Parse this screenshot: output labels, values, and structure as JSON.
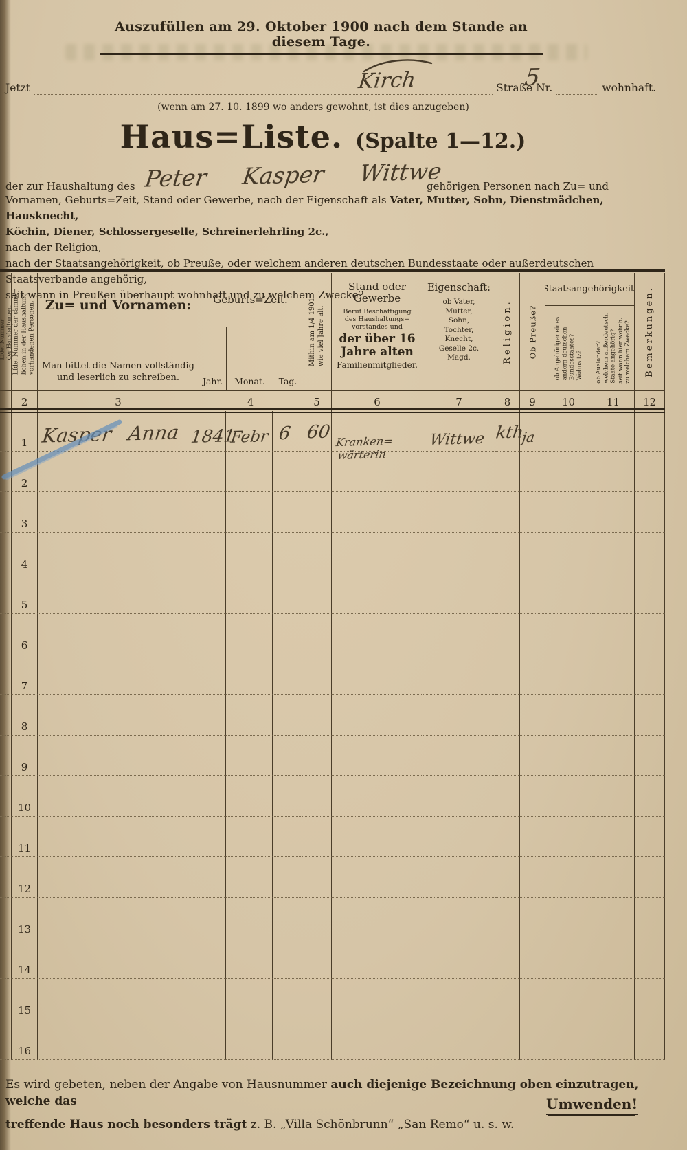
{
  "document": {
    "top_instruction": "Auszufüllen am 29. Oktober 1900 nach dem Stande an diesem Tage.",
    "address_line": {
      "jetzt_label": "Jetzt",
      "street_handwritten": "Kirch",
      "street_nr_label": "Straße Nr.",
      "street_nr_handwritten": "5",
      "wohnhaft_label": "wohnhaft."
    },
    "note_previous_residence": "(wenn am 27. 10. 1899 wo anders gewohnt, ist dies anzugeben)",
    "title": "Haus=Liste.",
    "title_suffix": "(Spalte 1—12.)",
    "intro": {
      "line1_pre": "der zur Haushaltung des",
      "line1_handwritten_name": "Peter Kasper Wittwe",
      "line1_post": "gehörigen Personen nach Zu= und",
      "line2_regular": "Vornamen, Geburts=Zeit, Stand oder Gewerbe, nach der Eigenschaft als",
      "line2_bold": "Vater, Mutter, Sohn, Dienstmädchen, Hausknecht,",
      "line3_bold": "Köchin, Diener, Schlossergeselle, Schreinerlehrling 2c.,",
      "line4": "nach der Religion,",
      "line5": "nach der Staatsangehörigkeit, ob Preuße, oder welchem anderen deutschen Bundesstaate oder außerdeutschen Staatsverbande angehörig,",
      "line6": "seit wann in Preußen überhaupt wohnhaft und zu welchem Zwecke?"
    }
  },
  "table": {
    "col_numbers": [
      "2",
      "3",
      "4",
      "5",
      "6",
      "7",
      "8",
      "9",
      "10",
      "11",
      "12"
    ],
    "headers": {
      "col1_rot": "Lfde. Nummer\nder Haushaltungen.",
      "col2_rot": "Lfde. Nummer der sämmt=\nlichen in der Haushaltung\nvorhandenen Personen.",
      "col3_title": "Zu= und Vornamen:",
      "col3_note": "Man bittet die Namen vollständig\nund leserlich zu schreiben.",
      "col4_title": "Geburts=Zeit.",
      "col4_sub_jahr": "Jahr.",
      "col4_sub_monat": "Monat.",
      "col4_sub_tag": "Tag.",
      "col5_rot": "Mithin am 1/4 1901\nwie viel Jahre alt.",
      "col6_title": "Stand oder\nGewerbe",
      "col6_small": "Beruf Beschäftigung\ndes Haushaltungs=\nvorstandes und",
      "col6_bold": "der über 16\nJahre alten",
      "col6_tail": "Familienmitglieder.",
      "col7_title": "Eigenschaft:",
      "col7_list": "ob Vater,\nMutter,\nSohn,\nTochter,\nKnecht,\nGeselle 2c.\nMagd.",
      "col8_rot": "Religion.",
      "col9_rot": "Ob Preuße?",
      "col10_group": "Staatsangehörigkeit.",
      "col10_rot": "ob Angehöriger eines\nandern deutschen\nBundesstaates?\nWohnsitz?",
      "col11_rot": "ob Ausländer?\nwelchem außerdeutsch.\nStaate angehörig?\nseit wann hier wohnh.\nzu welchem Zwecke?",
      "col12_rot": "Bemerkungen."
    },
    "rows": [
      {
        "nr": "1",
        "name": "Kasper Anna",
        "jahr": "1841",
        "monat": "Febr",
        "tag": "6",
        "alter": "60",
        "stand": "Kranken=\n wärterin",
        "eigenschaft": "Wittwe",
        "religion": "kth",
        "preusse": "ja",
        "bundesstaat": "",
        "auslaender": "",
        "bemerkungen": ""
      },
      {
        "nr": "2"
      },
      {
        "nr": "3"
      },
      {
        "nr": "4"
      },
      {
        "nr": "5"
      },
      {
        "nr": "6"
      },
      {
        "nr": "7"
      },
      {
        "nr": "8"
      },
      {
        "nr": "9"
      },
      {
        "nr": "10"
      },
      {
        "nr": "11"
      },
      {
        "nr": "12"
      },
      {
        "nr": "13"
      },
      {
        "nr": "14"
      },
      {
        "nr": "15"
      },
      {
        "nr": "16"
      }
    ]
  },
  "footer": {
    "line1_regular": "Es wird gebeten, neben der Angabe von Hausnummer",
    "line1_bold": "auch diejenige Bezeichnung oben einzutragen, welche das",
    "line2_bold": "treffende Haus noch besonders trägt",
    "line2_regular": "z. B. „Villa Schönbrunn“ „San Remo“ u. s. w.",
    "turn_over": "Umwenden!"
  },
  "colors": {
    "paper": "#d6c5a7",
    "ink": "#2f2619",
    "table_line": "#4a3d29",
    "handwriting": "#463a29",
    "blue_pencil": "#6690ba"
  }
}
